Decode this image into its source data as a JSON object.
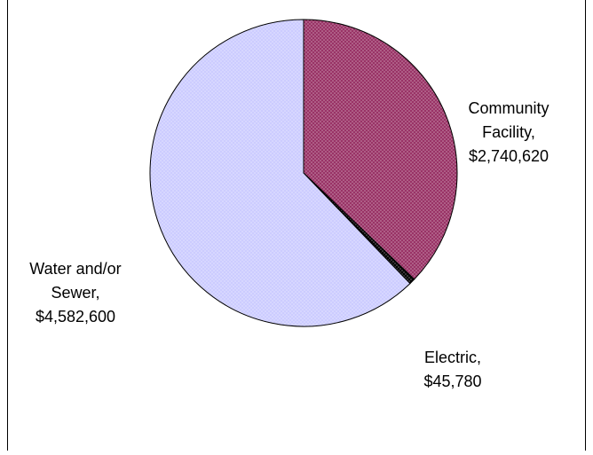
{
  "chart_data": {
    "type": "pie",
    "categories": [
      "Community Facility,",
      "Electric,",
      "Water and/or Sewer,"
    ],
    "values": [
      2740620,
      45780,
      4582600
    ],
    "value_labels": [
      "$2,740,620",
      "$45,780",
      "$4,582,600"
    ],
    "colors": [
      "#993366",
      "#000000",
      "#ccccff"
    ]
  }
}
